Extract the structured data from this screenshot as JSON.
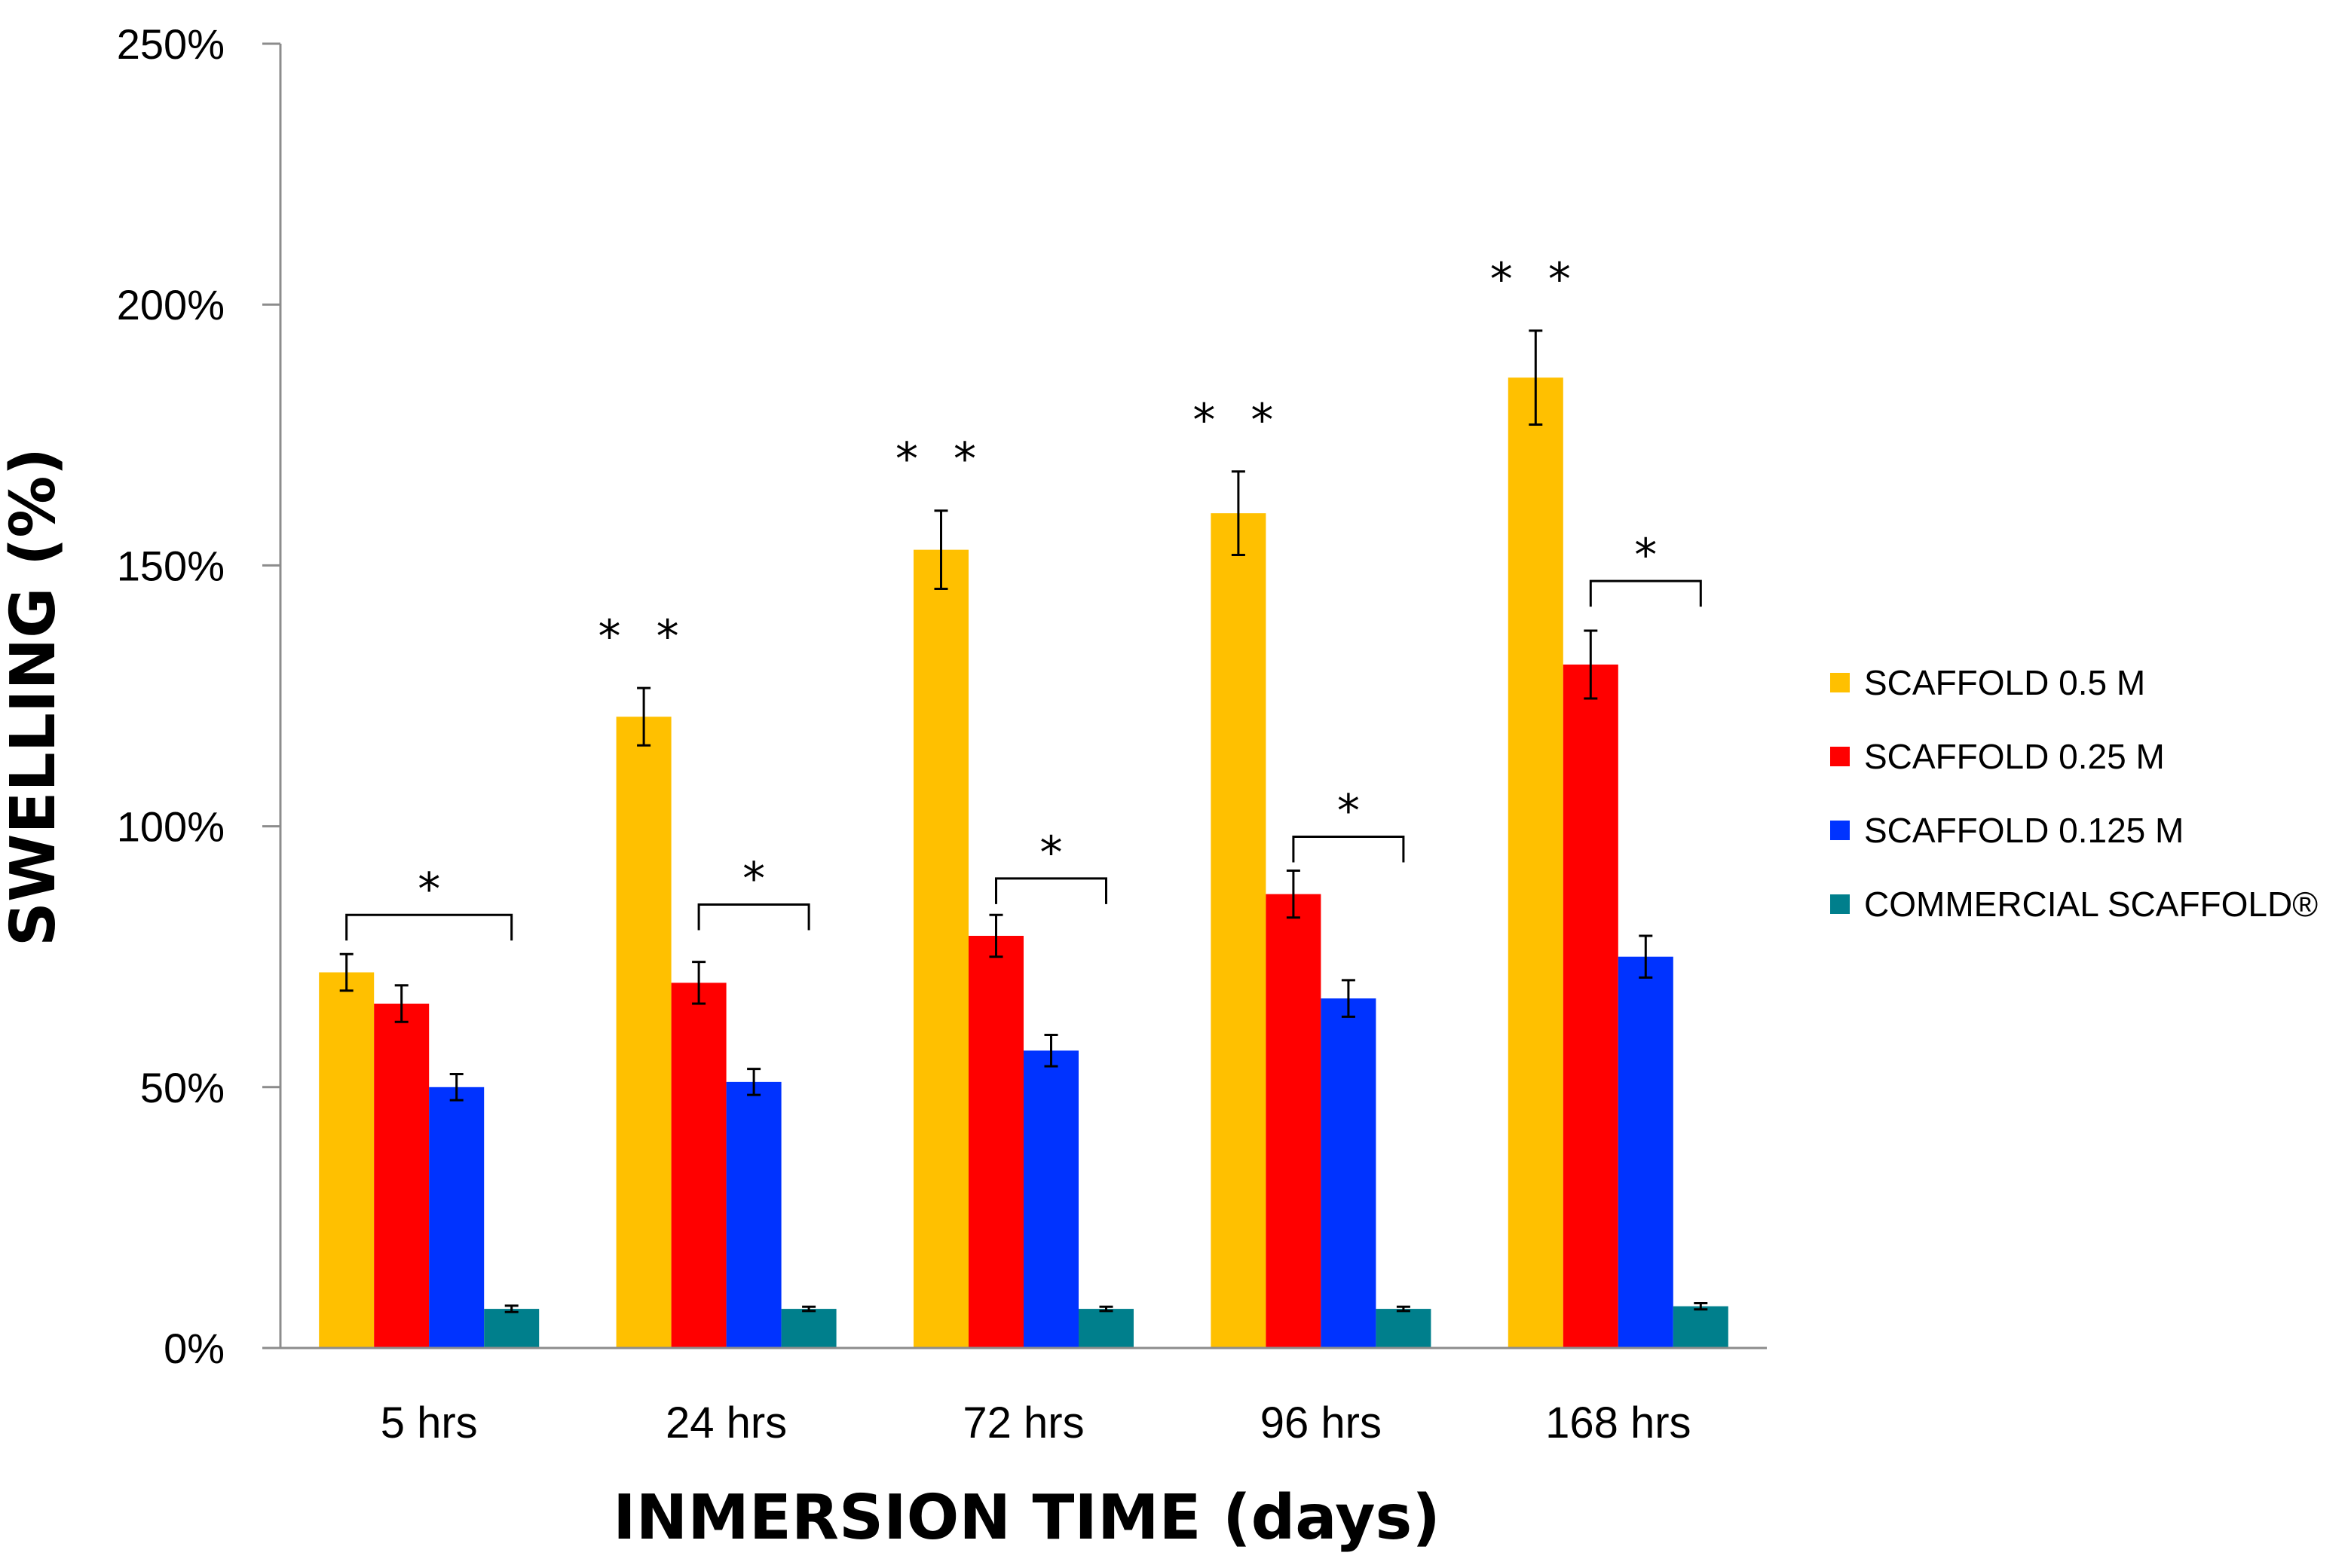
{
  "chart_data": {
    "type": "bar",
    "categories": [
      "5 hrs",
      "24 hrs",
      "72 hrs",
      "96 hrs",
      "168 hrs"
    ],
    "series": [
      {
        "name": "SCAFFOLD 0.5 M",
        "color": "#FFC000",
        "values": [
          72,
          121,
          153,
          160,
          186
        ],
        "errors": [
          3.5,
          5.5,
          7.5,
          8,
          9
        ]
      },
      {
        "name": "SCAFFOLD 0.25 M",
        "color": "#FF0000",
        "values": [
          66,
          70,
          79,
          87,
          131
        ],
        "errors": [
          3.5,
          4,
          4,
          4.5,
          6.5
        ]
      },
      {
        "name": "SCAFFOLD 0.125 M",
        "color": "#0033FF",
        "values": [
          50,
          51,
          57,
          67,
          75
        ],
        "errors": [
          2.5,
          2.5,
          3,
          3.5,
          4
        ]
      },
      {
        "name": "COMMERCIAL SCAFFOLD®",
        "color": "#007F8C",
        "values": [
          7.5,
          7.5,
          7.5,
          7.5,
          8
        ],
        "errors": [
          0.6,
          0.4,
          0.4,
          0.4,
          0.6
        ]
      }
    ],
    "significance": [
      {
        "category": "5 hrs",
        "label": "*",
        "bracket": "from SCAFFOLD 0.5 M to COMMERCIAL SCAFFOLD",
        "bracket_at": 83
      },
      {
        "category": "24 hrs",
        "label": "**",
        "over": "SCAFFOLD 0.5 M"
      },
      {
        "category": "24 hrs",
        "label": "*",
        "bracket": "from SCAFFOLD 0.25 M to COMMERCIAL SCAFFOLD",
        "bracket_at": 85
      },
      {
        "category": "72 hrs",
        "label": "**",
        "over": "SCAFFOLD 0.5 M"
      },
      {
        "category": "72 hrs",
        "label": "*",
        "bracket": "from SCAFFOLD 0.25 M to COMMERCIAL SCAFFOLD",
        "bracket_at": 90
      },
      {
        "category": "96 hrs",
        "label": "**",
        "over": "SCAFFOLD 0.5 M"
      },
      {
        "category": "96 hrs",
        "label": "*",
        "bracket": "from SCAFFOLD 0.25 M to COMMERCIAL SCAFFOLD",
        "bracket_at": 98
      },
      {
        "category": "168 hrs",
        "label": "**",
        "over": "SCAFFOLD 0.5 M"
      },
      {
        "category": "168 hrs",
        "label": "*",
        "bracket": "from SCAFFOLD 0.25 M to COMMERCIAL SCAFFOLD",
        "bracket_at": 147
      }
    ],
    "xlabel": "INMERSION TIME (days)",
    "ylabel": "SWELLING (%)",
    "ylim": [
      0,
      250
    ],
    "yticks": [
      0,
      50,
      100,
      150,
      200,
      250
    ],
    "ytick_labels": [
      "0%",
      "50%",
      "100%",
      "150%",
      "200%",
      "250%"
    ],
    "legend_position": "right",
    "grid": false
  }
}
